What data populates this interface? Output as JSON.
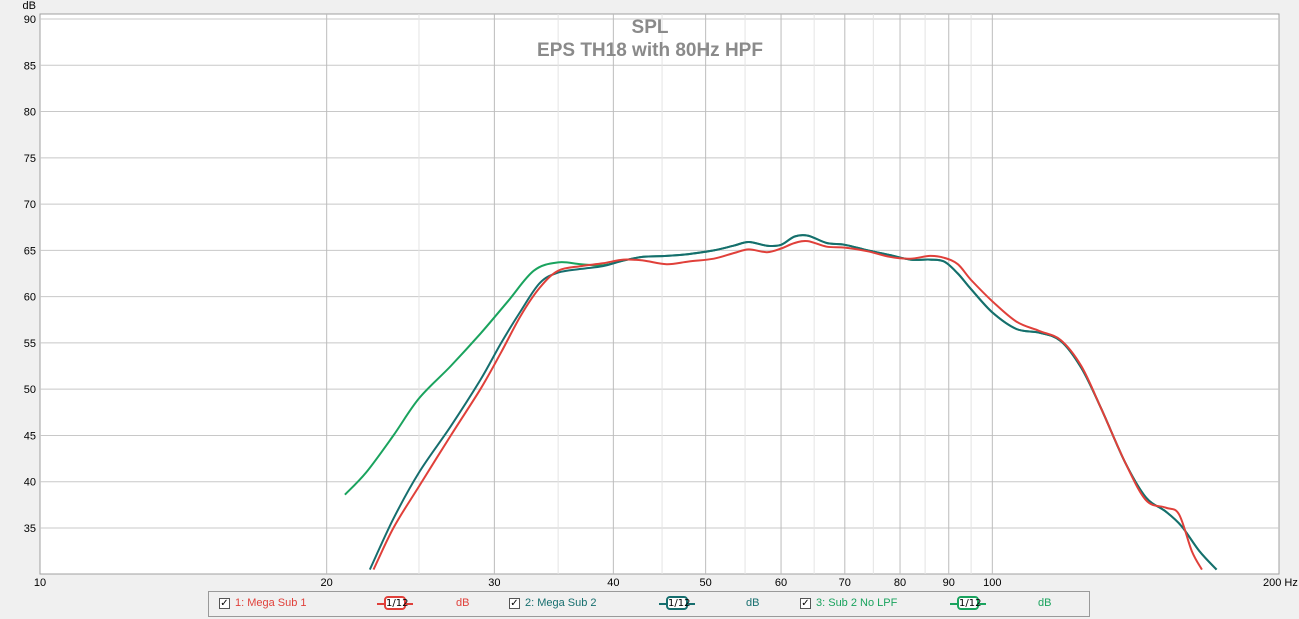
{
  "chart_data": {
    "type": "line",
    "title": "SPL",
    "subtitle": "EPS TH18 with 80Hz HPF",
    "ylabel": "dB",
    "xunit": "Hz",
    "xscale": "log",
    "xlim": [
      10,
      200
    ],
    "ylim": [
      30.5,
      91
    ],
    "grid": true,
    "x_major_ticks": [
      10,
      20,
      30,
      40,
      50,
      60,
      70,
      80,
      90,
      100,
      200
    ],
    "x_tick_labels": [
      "10",
      "20",
      "30",
      "40",
      "50",
      "60",
      "70",
      "80",
      "90",
      "100",
      "200 Hz"
    ],
    "x_minor_grid": [
      25,
      35,
      45,
      55,
      65,
      75,
      85,
      95
    ],
    "y_ticks": [
      35,
      40,
      45,
      50,
      55,
      60,
      65,
      70,
      75,
      80,
      85,
      90
    ],
    "legend_position": "bottom",
    "series": [
      {
        "name": "1: Mega Sub 1",
        "color": "#e0403a",
        "points": [
          [
            22.4,
            30.5
          ],
          [
            23.5,
            35
          ],
          [
            25,
            39.5
          ],
          [
            27,
            45
          ],
          [
            29,
            50
          ],
          [
            30.5,
            54
          ],
          [
            32,
            58
          ],
          [
            33.5,
            61
          ],
          [
            35,
            62.8
          ],
          [
            37,
            63.3
          ],
          [
            39,
            63.6
          ],
          [
            41,
            64
          ],
          [
            43,
            63.9
          ],
          [
            45.5,
            63.5
          ],
          [
            48,
            63.8
          ],
          [
            51,
            64.1
          ],
          [
            53.5,
            64.7
          ],
          [
            55.5,
            65.1
          ],
          [
            58,
            64.8
          ],
          [
            60,
            65.2
          ],
          [
            62,
            65.8
          ],
          [
            64,
            66
          ],
          [
            67,
            65.4
          ],
          [
            70,
            65.3
          ],
          [
            74,
            64.9
          ],
          [
            78,
            64.3
          ],
          [
            82,
            64.1
          ],
          [
            86,
            64.4
          ],
          [
            89,
            64.2
          ],
          [
            92,
            63.5
          ],
          [
            95,
            61.8
          ],
          [
            100,
            59.5
          ],
          [
            106,
            57.3
          ],
          [
            112,
            56.3
          ],
          [
            118,
            55.3
          ],
          [
            124,
            52.5
          ],
          [
            130,
            48
          ],
          [
            138,
            42
          ],
          [
            145,
            38
          ],
          [
            152,
            37.2
          ],
          [
            157,
            36.5
          ],
          [
            162,
            32.5
          ],
          [
            166,
            30.5
          ]
        ]
      },
      {
        "name": "2: Mega Sub 2",
        "color": "#166e6e",
        "points": [
          [
            22.2,
            30.5
          ],
          [
            23.5,
            36
          ],
          [
            25,
            41
          ],
          [
            27,
            46
          ],
          [
            29,
            51
          ],
          [
            30.5,
            55
          ],
          [
            32,
            58.5
          ],
          [
            33.5,
            61.5
          ],
          [
            35,
            62.6
          ],
          [
            37,
            63
          ],
          [
            39,
            63.3
          ],
          [
            41,
            63.9
          ],
          [
            43,
            64.3
          ],
          [
            45.5,
            64.4
          ],
          [
            48,
            64.6
          ],
          [
            51,
            65
          ],
          [
            53.5,
            65.5
          ],
          [
            55.5,
            65.9
          ],
          [
            58,
            65.5
          ],
          [
            60,
            65.6
          ],
          [
            62,
            66.5
          ],
          [
            64,
            66.6
          ],
          [
            67,
            65.8
          ],
          [
            70,
            65.6
          ],
          [
            74,
            65
          ],
          [
            78,
            64.5
          ],
          [
            82,
            64
          ],
          [
            86,
            64
          ],
          [
            89,
            63.8
          ],
          [
            92,
            62.5
          ],
          [
            95,
            60.8
          ],
          [
            100,
            58.3
          ],
          [
            106,
            56.5
          ],
          [
            112,
            56.1
          ],
          [
            118,
            55.2
          ],
          [
            124,
            52.3
          ],
          [
            130,
            48
          ],
          [
            138,
            42
          ],
          [
            145,
            38.3
          ],
          [
            152,
            36.8
          ],
          [
            158,
            35.2
          ],
          [
            165,
            32.5
          ],
          [
            172,
            30.5
          ]
        ]
      },
      {
        "name": "3: Sub 2 No LPF",
        "color": "#1aa35e",
        "points": [
          [
            20.9,
            38.6
          ],
          [
            22,
            41
          ],
          [
            23.5,
            45
          ],
          [
            25,
            49
          ],
          [
            27,
            52.5
          ],
          [
            29,
            56
          ],
          [
            31,
            59.5
          ],
          [
            33,
            62.8
          ],
          [
            35,
            63.7
          ],
          [
            37,
            63.5
          ],
          [
            39,
            63.4
          ],
          [
            41,
            63.9
          ],
          [
            43,
            64.3
          ],
          [
            45.5,
            64.4
          ],
          [
            48,
            64.6
          ],
          [
            51,
            65
          ],
          [
            53.5,
            65.5
          ],
          [
            55.5,
            65.9
          ],
          [
            58,
            65.5
          ],
          [
            60,
            65.6
          ],
          [
            62,
            66.5
          ],
          [
            64,
            66.6
          ],
          [
            67,
            65.8
          ],
          [
            70,
            65.6
          ],
          [
            74,
            65
          ],
          [
            78,
            64.5
          ],
          [
            82,
            64
          ],
          [
            86,
            64
          ],
          [
            89,
            63.8
          ],
          [
            92,
            62.5
          ],
          [
            95,
            60.8
          ],
          [
            100,
            58.3
          ],
          [
            106,
            56.5
          ],
          [
            112,
            56.1
          ],
          [
            118,
            55.2
          ],
          [
            124,
            52.3
          ],
          [
            130,
            48
          ],
          [
            138,
            42
          ],
          [
            145,
            38.3
          ],
          [
            152,
            36.8
          ],
          [
            158,
            35.2
          ],
          [
            165,
            32.5
          ],
          [
            172,
            30.5
          ]
        ]
      }
    ]
  },
  "legend": {
    "check_glyph": "✓",
    "smoothing_label": "1/12",
    "entries": [
      {
        "label": "1: Mega Sub 1",
        "unit": "dB",
        "color": "#e0403a"
      },
      {
        "label": "2: Mega Sub 2",
        "unit": "dB",
        "color": "#166e6e"
      },
      {
        "label": "3: Sub 2 No LPF",
        "unit": "dB",
        "color": "#1aa35e"
      }
    ]
  }
}
